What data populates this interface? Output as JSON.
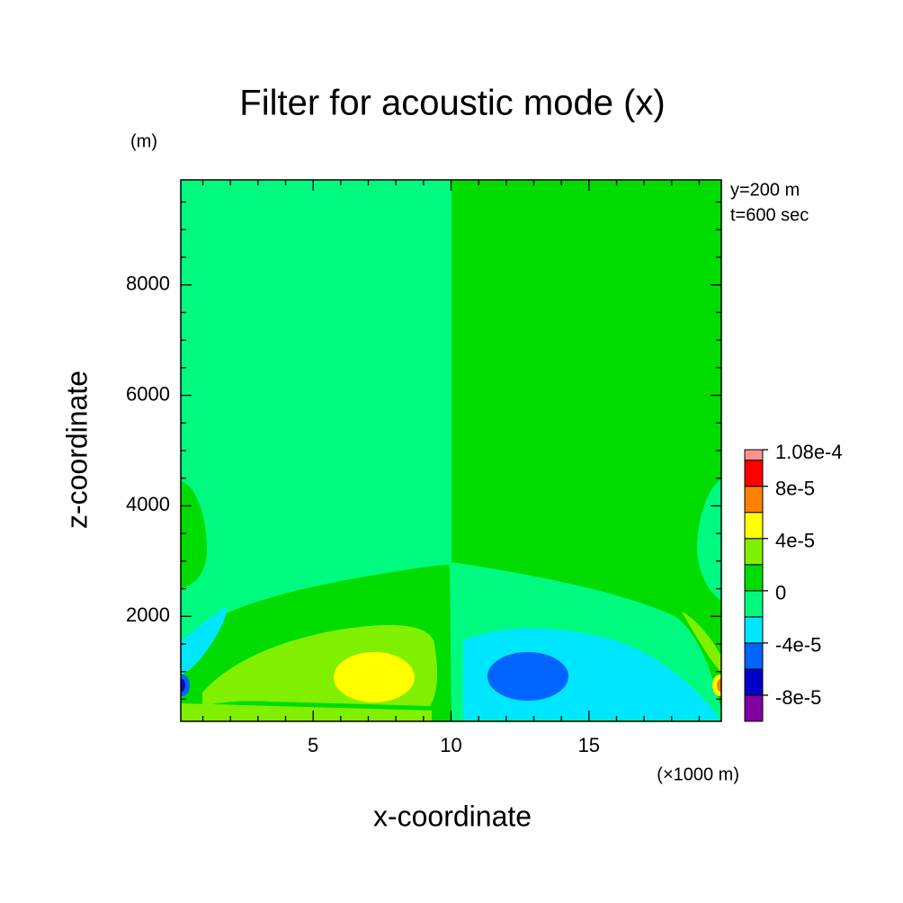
{
  "chart_data": {
    "type": "contour",
    "title": "Filter for acoustic mode (x)",
    "y_unit": "(m)",
    "x_label": "x-coordinate",
    "y_label": "z-coordinate",
    "x_unit": "(×1000 m)",
    "annotations": [
      "y=200 m",
      "t=600 sec"
    ],
    "xlim": [
      0.2,
      19.8
    ],
    "ylim": [
      100,
      9900
    ],
    "xticks": [
      5,
      10,
      15
    ],
    "yticks": [
      2000,
      4000,
      6000,
      8000
    ],
    "xminorticks": [
      1,
      2,
      3,
      4,
      6,
      7,
      8,
      9,
      11,
      12,
      13,
      14,
      16,
      17,
      18,
      19
    ],
    "yminorticks": [
      500,
      1000,
      1500,
      2500,
      3000,
      3500,
      4500,
      5000,
      5500,
      6500,
      7000,
      7500,
      8500,
      9000,
      9500
    ],
    "colorbar": {
      "levels": [
        -0.0001,
        -8e-05,
        -6e-05,
        -4e-05,
        -2e-05,
        0,
        2e-05,
        4e-05,
        6e-05,
        8e-05,
        0.0001,
        0.000108
      ],
      "colors": [
        "#8000a0",
        "#0000c8",
        "#0064ff",
        "#00e6ff",
        "#00fa80",
        "#00dc00",
        "#80f000",
        "#ffff00",
        "#ff8000",
        "#ff0000",
        "#ff9090"
      ],
      "ticks": [
        {
          "value": -8e-05,
          "label": "-8e-5"
        },
        {
          "value": -4e-05,
          "label": "-4e-5"
        },
        {
          "value": 0,
          "label": "0"
        },
        {
          "value": 4e-05,
          "label": "4e-5"
        },
        {
          "value": 8e-05,
          "label": "8e-5"
        },
        {
          "value": 0.000108,
          "label": "1.08e-4"
        }
      ]
    }
  }
}
